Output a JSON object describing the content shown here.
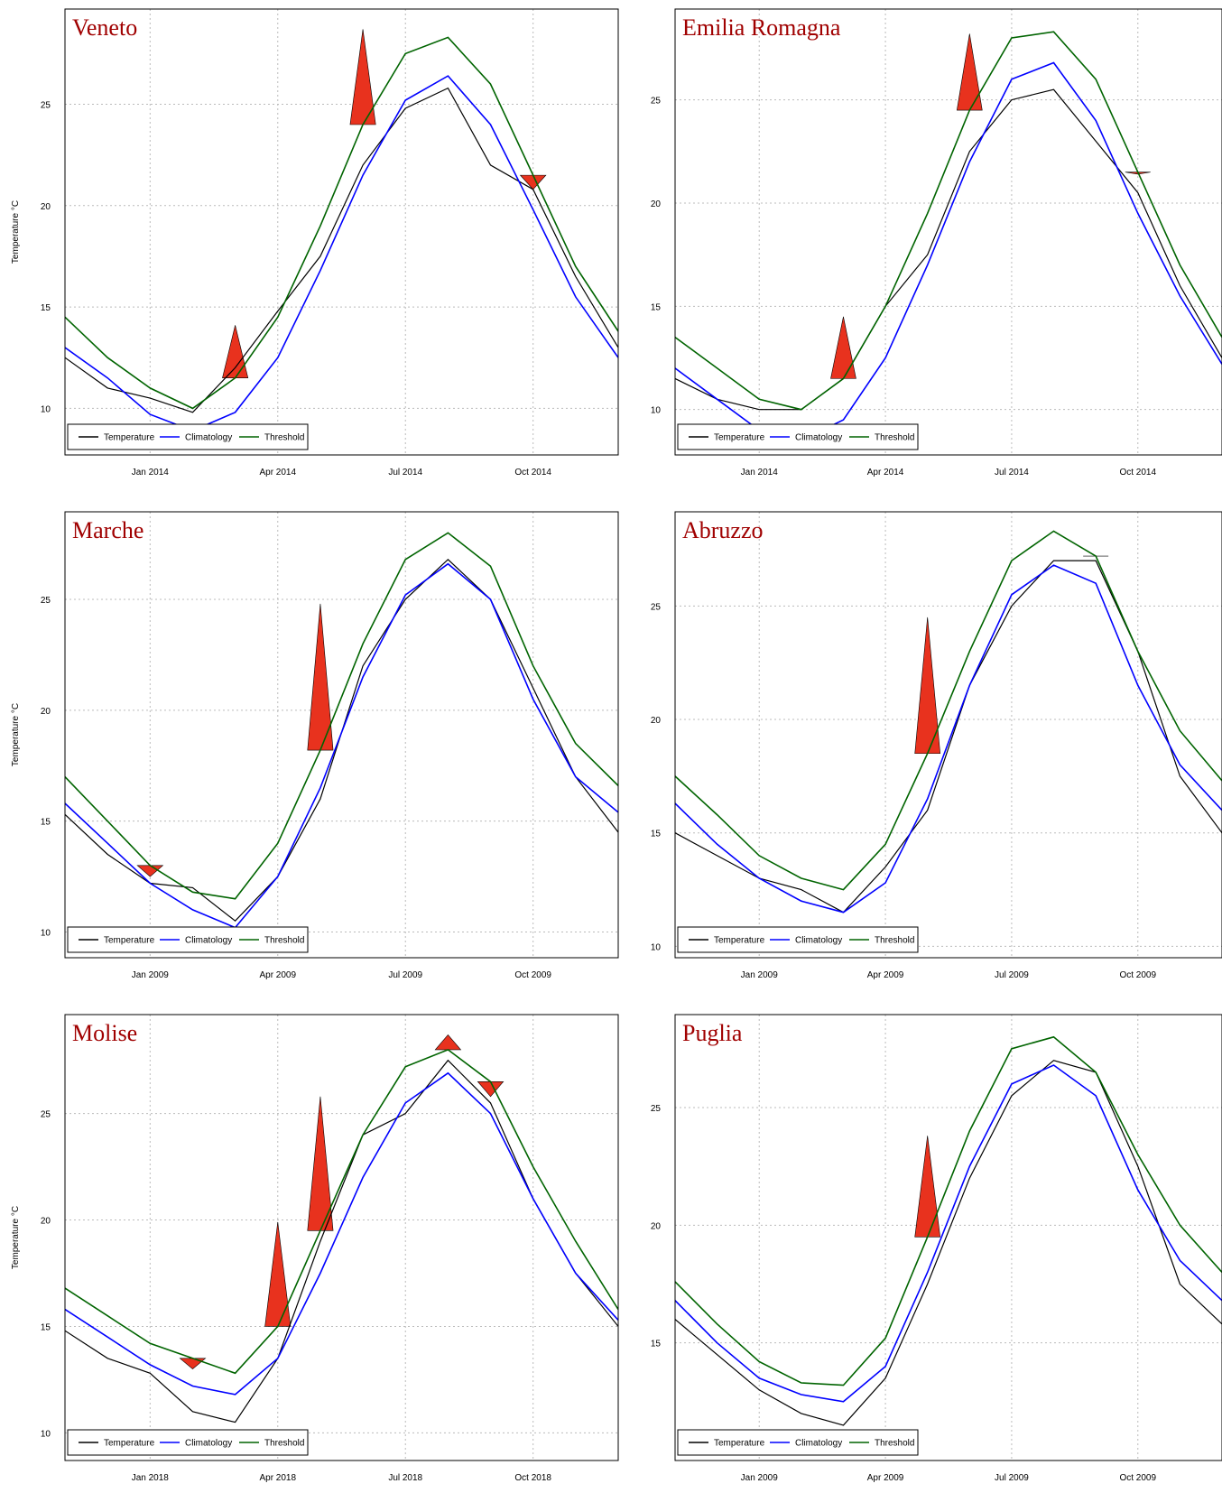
{
  "chart_data": [
    {
      "type": "line",
      "title": "Veneto",
      "ylabel": "Temperature °C",
      "x": [
        "2013-11",
        "2013-12",
        "2014-01",
        "2014-02",
        "2014-03",
        "2014-04",
        "2014-05",
        "2014-06",
        "2014-07",
        "2014-08",
        "2014-09",
        "2014-10",
        "2014-11",
        "2014-12"
      ],
      "series": [
        {
          "name": "Temperature",
          "color": "#000000",
          "values": [
            12.5,
            11,
            10.5,
            9.8,
            12,
            14.8,
            17.5,
            22,
            24.8,
            25.8,
            22,
            20.8,
            16.5,
            13
          ]
        },
        {
          "name": "Climatology",
          "color": "#0000ff",
          "values": [
            13,
            11.5,
            9.7,
            8.9,
            9.8,
            12.5,
            16.8,
            21.5,
            25.2,
            26.4,
            24,
            19.8,
            15.5,
            12.5
          ]
        },
        {
          "name": "Threshold",
          "color": "#006400",
          "values": [
            14.5,
            12.5,
            11,
            10,
            11.5,
            14.5,
            19,
            24,
            27.5,
            28.3,
            26,
            21.5,
            17,
            13.8
          ]
        }
      ],
      "events": {
        "color": "#e8321e",
        "x": [
          "2014-03",
          "2014-06",
          "2014-10"
        ],
        "values": [
          14.1,
          28.7,
          20.8
        ]
      },
      "xlim": [
        "2013-11",
        "2014-12"
      ],
      "xticks": [
        {
          "value": "2014-01",
          "label": "Jan 2014"
        },
        {
          "value": "2014-04",
          "label": "Apr 2014"
        },
        {
          "value": "2014-07",
          "label": "Jul 2014"
        },
        {
          "value": "2014-10",
          "label": "Oct 2014"
        }
      ],
      "ylim": [
        7.7,
        29.7
      ],
      "yticks": [
        10,
        15,
        20,
        25
      ],
      "grid": true,
      "legend": "bottom-left"
    },
    {
      "type": "line",
      "title": "Emilia Romagna",
      "x": [
        "2013-11",
        "2013-12",
        "2014-01",
        "2014-02",
        "2014-03",
        "2014-04",
        "2014-05",
        "2014-06",
        "2014-07",
        "2014-08",
        "2014-09",
        "2014-10",
        "2014-11",
        "2014-12"
      ],
      "series": [
        {
          "name": "Temperature",
          "color": "#000000",
          "values": [
            11.5,
            10.5,
            10,
            10,
            11.5,
            15,
            17.5,
            22.5,
            25,
            25.5,
            23,
            20.5,
            16,
            12.5
          ]
        },
        {
          "name": "Climatology",
          "color": "#0000ff",
          "values": [
            12,
            10.5,
            9,
            8.5,
            9.5,
            12.5,
            17,
            22,
            26,
            26.8,
            24,
            19.5,
            15.5,
            12.2
          ]
        },
        {
          "name": "Threshold",
          "color": "#006400",
          "values": [
            13.5,
            12,
            10.5,
            10,
            11.5,
            15,
            19.5,
            24.5,
            28,
            28.3,
            26,
            21.5,
            17,
            13.5
          ]
        }
      ],
      "events": {
        "color": "#e8321e",
        "x": [
          "2014-03",
          "2014-06",
          "2014-10"
        ],
        "values": [
          14.5,
          28.2,
          21.4
        ]
      },
      "xlim": [
        "2013-11",
        "2014-12"
      ],
      "xticks": [
        {
          "value": "2014-01",
          "label": "Jan 2014"
        },
        {
          "value": "2014-04",
          "label": "Apr 2014"
        },
        {
          "value": "2014-07",
          "label": "Jul 2014"
        },
        {
          "value": "2014-10",
          "label": "Oct 2014"
        }
      ],
      "ylim": [
        7.8,
        29.4
      ],
      "yticks": [
        10,
        15,
        20,
        25
      ],
      "grid": true,
      "legend": "bottom-left"
    },
    {
      "type": "line",
      "title": "Marche",
      "ylabel": "Temperature °C",
      "x": [
        "2008-11",
        "2008-12",
        "2009-01",
        "2009-02",
        "2009-03",
        "2009-04",
        "2009-05",
        "2009-06",
        "2009-07",
        "2009-08",
        "2009-09",
        "2009-10",
        "2009-11",
        "2009-12"
      ],
      "series": [
        {
          "name": "Temperature",
          "color": "#000000",
          "values": [
            15.3,
            13.5,
            12.2,
            12,
            10.5,
            12.5,
            16,
            22,
            25,
            26.8,
            25,
            21,
            17,
            14.5
          ]
        },
        {
          "name": "Climatology",
          "color": "#0000ff",
          "values": [
            15.8,
            14,
            12.2,
            11,
            10.2,
            12.5,
            16.5,
            21.5,
            25.2,
            26.6,
            25,
            20.5,
            17,
            15.4
          ]
        },
        {
          "name": "Threshold",
          "color": "#006400",
          "values": [
            17,
            15,
            13,
            11.8,
            11.5,
            14,
            18.2,
            23,
            26.8,
            28,
            26.5,
            22,
            18.5,
            16.6
          ]
        }
      ],
      "events": {
        "color": "#e8321e",
        "x": [
          "2009-01",
          "2009-05"
        ],
        "values": [
          12.5,
          24.8
        ]
      },
      "xlim": [
        "2008-11",
        "2009-12"
      ],
      "xticks": [
        {
          "value": "2009-01",
          "label": "Jan 2009"
        },
        {
          "value": "2009-04",
          "label": "Apr 2009"
        },
        {
          "value": "2009-07",
          "label": "Jul 2009"
        },
        {
          "value": "2009-10",
          "label": "Oct 2009"
        }
      ],
      "ylim": [
        8.84,
        28.95
      ],
      "yticks": [
        10,
        15,
        20,
        25
      ],
      "grid": true,
      "legend": "bottom-left"
    },
    {
      "type": "line",
      "title": "Abruzzo",
      "x": [
        "2008-11",
        "2008-12",
        "2009-01",
        "2009-02",
        "2009-03",
        "2009-04",
        "2009-05",
        "2009-06",
        "2009-07",
        "2009-08",
        "2009-09",
        "2009-10",
        "2009-11",
        "2009-12"
      ],
      "series": [
        {
          "name": "Temperature",
          "color": "#000000",
          "values": [
            15,
            14,
            13,
            12.5,
            11.5,
            13.5,
            16,
            21.5,
            25,
            27,
            27,
            23,
            17.5,
            15
          ]
        },
        {
          "name": "Climatology",
          "color": "#0000ff",
          "values": [
            16.3,
            14.5,
            13,
            12,
            11.5,
            12.8,
            16.5,
            21.5,
            25.5,
            26.8,
            26,
            21.5,
            18,
            16
          ]
        },
        {
          "name": "Threshold",
          "color": "#006400",
          "values": [
            17.5,
            15.8,
            14,
            13,
            12.5,
            14.5,
            18.5,
            23,
            27,
            28.3,
            27.2,
            23,
            19.5,
            17.3
          ]
        }
      ],
      "events": {
        "color": "#e8321e",
        "x": [
          "2009-05",
          "2009-09"
        ],
        "values": [
          24.5,
          27.2
        ]
      },
      "xlim": [
        "2008-11",
        "2009-12"
      ],
      "xticks": [
        {
          "value": "2009-01",
          "label": "Jan 2009"
        },
        {
          "value": "2009-04",
          "label": "Apr 2009"
        },
        {
          "value": "2009-07",
          "label": "Jul 2009"
        },
        {
          "value": "2009-10",
          "label": "Oct 2009"
        }
      ],
      "ylim": [
        9.5,
        29.15
      ],
      "yticks": [
        10,
        15,
        20,
        25
      ],
      "grid": true,
      "legend": "bottom-left"
    },
    {
      "type": "line",
      "title": "Molise",
      "ylabel": "Temperature °C",
      "x": [
        "2017-11",
        "2017-12",
        "2018-01",
        "2018-02",
        "2018-03",
        "2018-04",
        "2018-05",
        "2018-06",
        "2018-07",
        "2018-08",
        "2018-09",
        "2018-10",
        "2018-11",
        "2018-12"
      ],
      "series": [
        {
          "name": "Temperature",
          "color": "#000000",
          "values": [
            14.8,
            13.5,
            12.8,
            11,
            10.5,
            13.5,
            19,
            24,
            25,
            27.5,
            25.5,
            21,
            17.5,
            15
          ]
        },
        {
          "name": "Climatology",
          "color": "#0000ff",
          "values": [
            15.8,
            14.5,
            13.2,
            12.2,
            11.8,
            13.5,
            17.5,
            22,
            25.5,
            26.9,
            25,
            21,
            17.5,
            15.3
          ]
        },
        {
          "name": "Threshold",
          "color": "#006400",
          "values": [
            16.8,
            15.5,
            14.2,
            13.5,
            12.8,
            15,
            19.5,
            24,
            27.2,
            28,
            26.5,
            22.5,
            19,
            15.8
          ]
        }
      ],
      "events": {
        "color": "#e8321e",
        "x": [
          "2018-02",
          "2018-04",
          "2018-05",
          "2018-08",
          "2018-09"
        ],
        "values": [
          13,
          19.9,
          25.8,
          28.7,
          25.8
        ]
      },
      "xlim": [
        "2017-11",
        "2018-12"
      ],
      "xticks": [
        {
          "value": "2018-01",
          "label": "Jan 2018"
        },
        {
          "value": "2018-04",
          "label": "Apr 2018"
        },
        {
          "value": "2018-07",
          "label": "Jul 2018"
        },
        {
          "value": "2018-10",
          "label": "Oct 2018"
        }
      ],
      "ylim": [
        8.7,
        29.65
      ],
      "yticks": [
        10,
        15,
        20,
        25
      ],
      "grid": true,
      "legend": "bottom-left"
    },
    {
      "type": "line",
      "title": "Puglia",
      "x": [
        "2008-11",
        "2008-12",
        "2009-01",
        "2009-02",
        "2009-03",
        "2009-04",
        "2009-05",
        "2009-06",
        "2009-07",
        "2009-08",
        "2009-09",
        "2009-10",
        "2009-11",
        "2009-12"
      ],
      "series": [
        {
          "name": "Temperature",
          "color": "#000000",
          "values": [
            16,
            14.5,
            13,
            12,
            11.5,
            13.5,
            17.5,
            22,
            25.5,
            27,
            26.5,
            22.5,
            17.5,
            15.8
          ]
        },
        {
          "name": "Climatology",
          "color": "#0000ff",
          "values": [
            16.8,
            15,
            13.5,
            12.8,
            12.5,
            14,
            18,
            22.5,
            26,
            26.8,
            25.5,
            21.5,
            18.5,
            16.8
          ]
        },
        {
          "name": "Threshold",
          "color": "#006400",
          "values": [
            17.6,
            15.8,
            14.2,
            13.3,
            13.2,
            15.2,
            19.5,
            24,
            27.5,
            28,
            26.5,
            23,
            20,
            18
          ]
        }
      ],
      "events": {
        "color": "#e8321e",
        "x": [
          "2009-05"
        ],
        "values": [
          23.8
        ]
      },
      "xlim": [
        "2008-11",
        "2009-12"
      ],
      "xticks": [
        {
          "value": "2009-01",
          "label": "Jan 2009"
        },
        {
          "value": "2009-04",
          "label": "Apr 2009"
        },
        {
          "value": "2009-07",
          "label": "Jul 2009"
        },
        {
          "value": "2009-10",
          "label": "Oct 2009"
        }
      ],
      "ylim": [
        10,
        28.95
      ],
      "yticks": [
        15,
        20,
        25
      ],
      "grid": true,
      "legend": "bottom-left"
    }
  ]
}
